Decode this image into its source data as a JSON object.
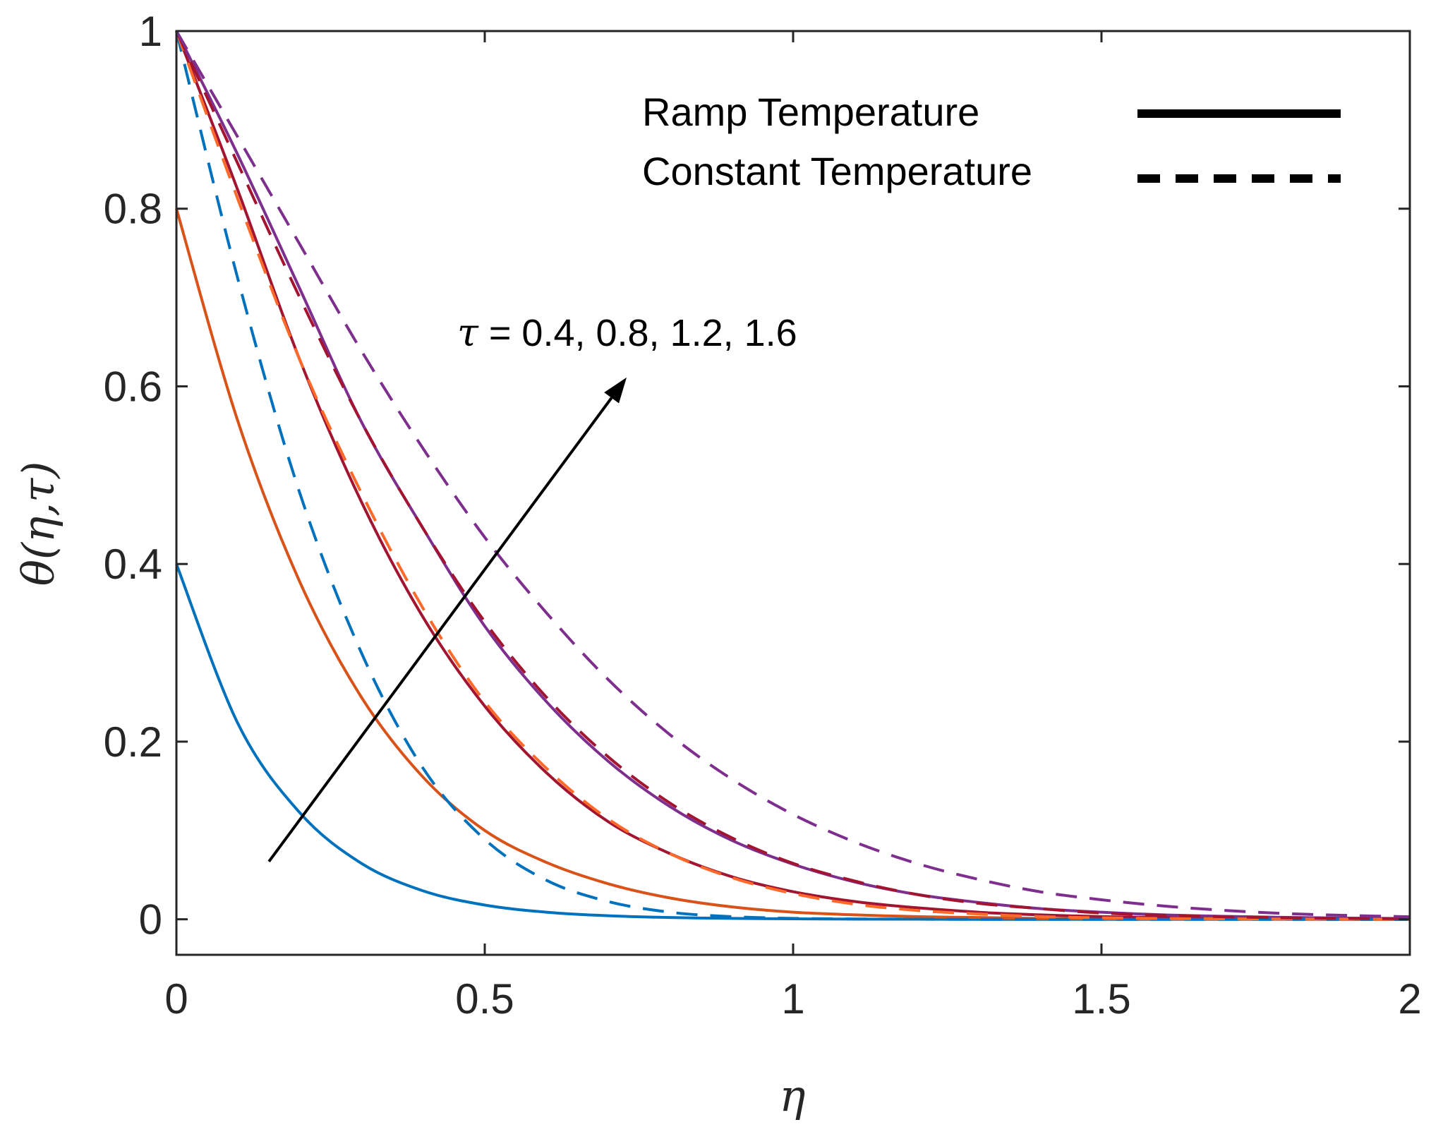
{
  "chart_data": {
    "type": "line",
    "title": "",
    "xlabel": "η",
    "ylabel": "θ(η,τ)",
    "xlim": [
      0,
      2
    ],
    "ylim": [
      -0.04,
      1.0
    ],
    "xticks": [
      0,
      0.5,
      1,
      1.5,
      2
    ],
    "xtick_labels": [
      "0",
      "0.5",
      "1",
      "1.5",
      "2"
    ],
    "yticks": [
      0,
      0.2,
      0.4,
      0.6,
      0.8,
      1
    ],
    "ytick_labels": [
      "0",
      "0.2",
      "0.4",
      "0.6",
      "0.8",
      "1"
    ],
    "grid": false,
    "legend_position": "top-right",
    "legend": [
      {
        "label": "Ramp Temperature",
        "style": "solid"
      },
      {
        "label": "Constant Temperature",
        "style": "dashed"
      }
    ],
    "annotation": {
      "symbol": "τ",
      "text": " = 0.4, 0.8, 1.2, 1.6",
      "arrow_from": [
        0.15,
        0.065
      ],
      "arrow_to": [
        0.73,
        0.61
      ]
    },
    "x": [
      0,
      0.1,
      0.2,
      0.3,
      0.4,
      0.5,
      0.6,
      0.7,
      0.8,
      0.9,
      1.0,
      1.1,
      1.2,
      1.3,
      1.4,
      1.5,
      1.6,
      1.7,
      1.8,
      1.9,
      2.0
    ],
    "series": [
      {
        "name": "Ramp τ=0.4",
        "tau": 0.4,
        "style": "solid",
        "color": "#0072BD",
        "values": [
          0.4,
          0.22,
          0.12,
          0.063,
          0.032,
          0.016,
          0.008,
          0.004,
          0.002,
          0.001,
          0.0005,
          0.0002,
          0.0001,
          0,
          0,
          0,
          0,
          0,
          0,
          0,
          0
        ]
      },
      {
        "name": "Ramp τ=0.8",
        "tau": 0.8,
        "style": "solid",
        "color": "#D95319",
        "values": [
          0.8,
          0.56,
          0.38,
          0.25,
          0.16,
          0.1,
          0.064,
          0.04,
          0.024,
          0.014,
          0.008,
          0.005,
          0.003,
          0.002,
          0.001,
          0.0005,
          0.0003,
          0.0002,
          0.0001,
          0,
          0
        ]
      },
      {
        "name": "Ramp τ=1.2",
        "tau": 1.2,
        "style": "solid",
        "color": "#A2142F",
        "values": [
          1.0,
          0.82,
          0.63,
          0.47,
          0.34,
          0.24,
          0.165,
          0.11,
          0.074,
          0.048,
          0.031,
          0.02,
          0.013,
          0.008,
          0.005,
          0.003,
          0.002,
          0.0013,
          0.0008,
          0.0005,
          0.0003
        ]
      },
      {
        "name": "Ramp τ=1.6",
        "tau": 1.6,
        "style": "solid",
        "color": "#7E2F8E",
        "values": [
          1.0,
          0.86,
          0.71,
          0.56,
          0.44,
          0.33,
          0.245,
          0.178,
          0.127,
          0.089,
          0.062,
          0.042,
          0.028,
          0.019,
          0.012,
          0.008,
          0.005,
          0.0033,
          0.0021,
          0.0013,
          0.0008
        ]
      },
      {
        "name": "Constant τ=0.4",
        "tau": 0.4,
        "style": "dashed",
        "color": "#0072BD",
        "values": [
          1.0,
          0.72,
          0.48,
          0.3,
          0.17,
          0.09,
          0.044,
          0.02,
          0.008,
          0.003,
          0.001,
          0.0004,
          0.0001,
          0,
          0,
          0,
          0,
          0,
          0,
          0,
          0
        ]
      },
      {
        "name": "Constant τ=0.8",
        "tau": 0.8,
        "style": "dashed",
        "color": "#FF6A2A",
        "values": [
          1.0,
          0.81,
          0.63,
          0.48,
          0.35,
          0.245,
          0.17,
          0.113,
          0.074,
          0.047,
          0.029,
          0.017,
          0.01,
          0.006,
          0.003,
          0.0016,
          0.0009,
          0.0005,
          0.0002,
          0.0001,
          0
        ]
      },
      {
        "name": "Constant τ=1.2",
        "tau": 1.2,
        "style": "dashed",
        "color": "#A2142F",
        "values": [
          1.0,
          0.85,
          0.7,
          0.56,
          0.44,
          0.335,
          0.25,
          0.183,
          0.131,
          0.092,
          0.063,
          0.043,
          0.028,
          0.018,
          0.012,
          0.007,
          0.0045,
          0.0028,
          0.0017,
          0.001,
          0.0006
        ]
      },
      {
        "name": "Constant τ=1.6",
        "tau": 1.6,
        "style": "dashed",
        "color": "#7E2F8E",
        "values": [
          1.0,
          0.88,
          0.76,
          0.64,
          0.53,
          0.43,
          0.345,
          0.27,
          0.208,
          0.158,
          0.118,
          0.087,
          0.063,
          0.045,
          0.031,
          0.022,
          0.015,
          0.01,
          0.0065,
          0.0043,
          0.0028
        ]
      }
    ]
  }
}
